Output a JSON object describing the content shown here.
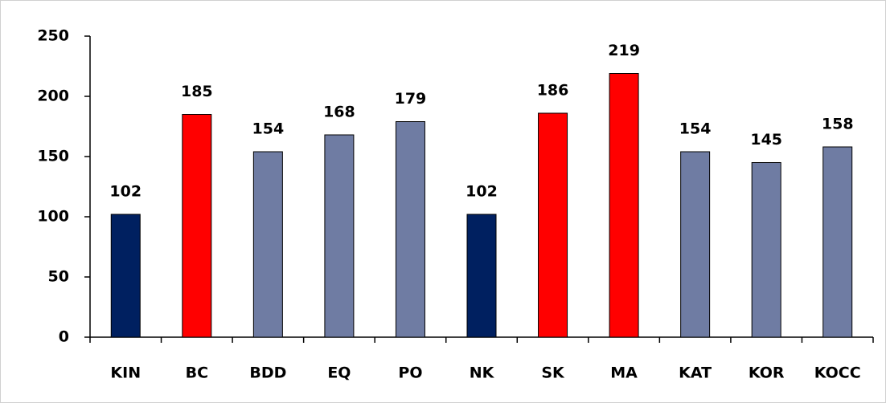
{
  "chart_data": {
    "type": "bar",
    "categories": [
      "KIN",
      "BC",
      "BDD",
      "EQ",
      "PO",
      "NK",
      "SK",
      "MA",
      "KAT",
      "KOR",
      "KOCC"
    ],
    "values": [
      102,
      185,
      154,
      168,
      179,
      102,
      186,
      219,
      154,
      145,
      158
    ],
    "colors": [
      "#002060",
      "#ff0000",
      "#6f7ca3",
      "#6f7ca3",
      "#6f7ca3",
      "#002060",
      "#ff0000",
      "#ff0000",
      "#6f7ca3",
      "#6f7ca3",
      "#6f7ca3"
    ],
    "ylim": [
      0,
      250
    ],
    "yticks": [
      0,
      50,
      100,
      150,
      200,
      250
    ],
    "grid": false,
    "data_labels": true
  }
}
